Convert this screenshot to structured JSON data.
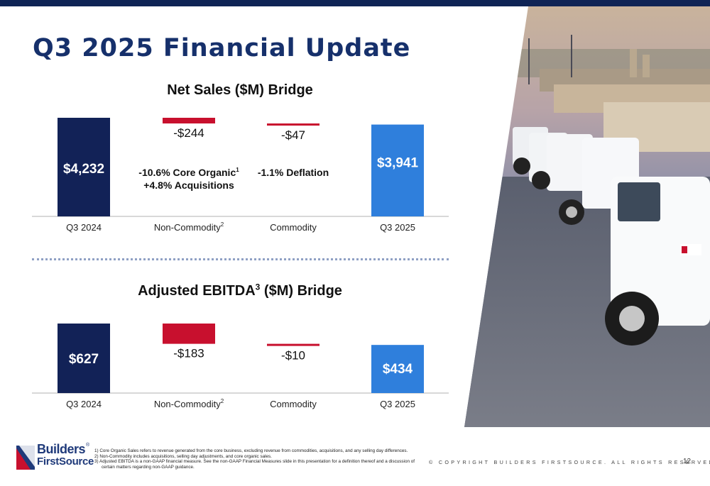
{
  "title": "Q3 2025 Financial Update",
  "colors": {
    "navy": "#0f2455",
    "bar_start": "#122257",
    "bar_negative": "#c8102e",
    "bar_end": "#2f7fdc",
    "title_blue": "#16306b"
  },
  "chart_data": [
    {
      "type": "bar",
      "subtype": "waterfall",
      "title": "Net Sales ($M) Bridge",
      "categories": [
        "Q3 2024",
        "Non-Commodity",
        "Commodity",
        "Q3 2025"
      ],
      "category_superscripts": [
        "",
        "2",
        "",
        ""
      ],
      "values": [
        4232,
        -244,
        -47,
        3941
      ],
      "value_labels": [
        "$4,232",
        "-$244",
        "-$47",
        "$3,941"
      ],
      "annotations": [
        {
          "category": "Non-Commodity",
          "lines": [
            "-10.6% Core Organic",
            "+4.8% Acquisitions"
          ],
          "superscripts": [
            "1",
            ""
          ]
        },
        {
          "category": "Commodity",
          "lines": [
            "-1.1% Deflation"
          ],
          "superscripts": [
            ""
          ]
        }
      ]
    },
    {
      "type": "bar",
      "subtype": "waterfall",
      "title": "Adjusted EBITDA",
      "title_superscript": "3",
      "title_suffix": "($M) Bridge",
      "categories": [
        "Q3 2024",
        "Non-Commodity",
        "Commodity",
        "Q3 2025"
      ],
      "category_superscripts": [
        "",
        "2",
        "",
        ""
      ],
      "values": [
        627,
        -183,
        -10,
        434
      ],
      "value_labels": [
        "$627",
        "-$183",
        "-$10",
        "$434"
      ],
      "annotations": []
    }
  ],
  "footer": {
    "logo_line1": "Builders",
    "logo_line2": "FirstSource",
    "logo_reg": "®",
    "notes": [
      "1)  Core Organic Sales refers to revenue generated from the core business, excluding revenue from commodities, acquisitions, and any selling day differences.",
      "2)  Non-Commodity includes acquisitions, selling day adjustments, and core organic sales.",
      "3)  Adjusted EBITDA is a non-GAAP financial measure. See the non-GAAP Financial Measures slide in this presentation for a definition thereof and a discussion of certain matters regarding non-GAAP guidance."
    ],
    "copyright": "© COPYRIGHT BUILDERS FIRSTSOURCE. ALL RIGHTS RESERVED.",
    "page_number": "12"
  }
}
